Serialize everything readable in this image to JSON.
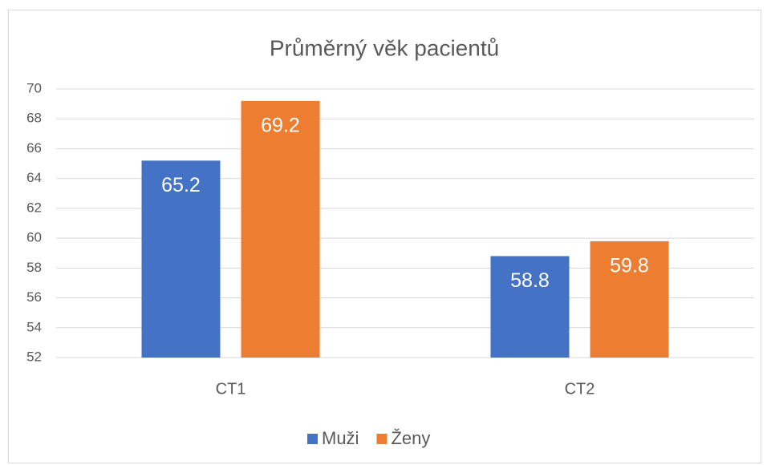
{
  "chart_data": {
    "type": "bar",
    "title": "Průměrný věk pacientů",
    "categories": [
      "CT1",
      "CT2"
    ],
    "series": [
      {
        "name": "Muži",
        "color": "#4472c4",
        "values": [
          65.2,
          58.8
        ]
      },
      {
        "name": "Ženy",
        "color": "#ed7d31",
        "values": [
          69.2,
          59.8
        ]
      }
    ],
    "ylim": [
      52,
      70
    ],
    "yticks": [
      52,
      54,
      56,
      58,
      60,
      62,
      64,
      66,
      68,
      70
    ],
    "grid": true,
    "legend": "bottom",
    "data_labels": true
  }
}
